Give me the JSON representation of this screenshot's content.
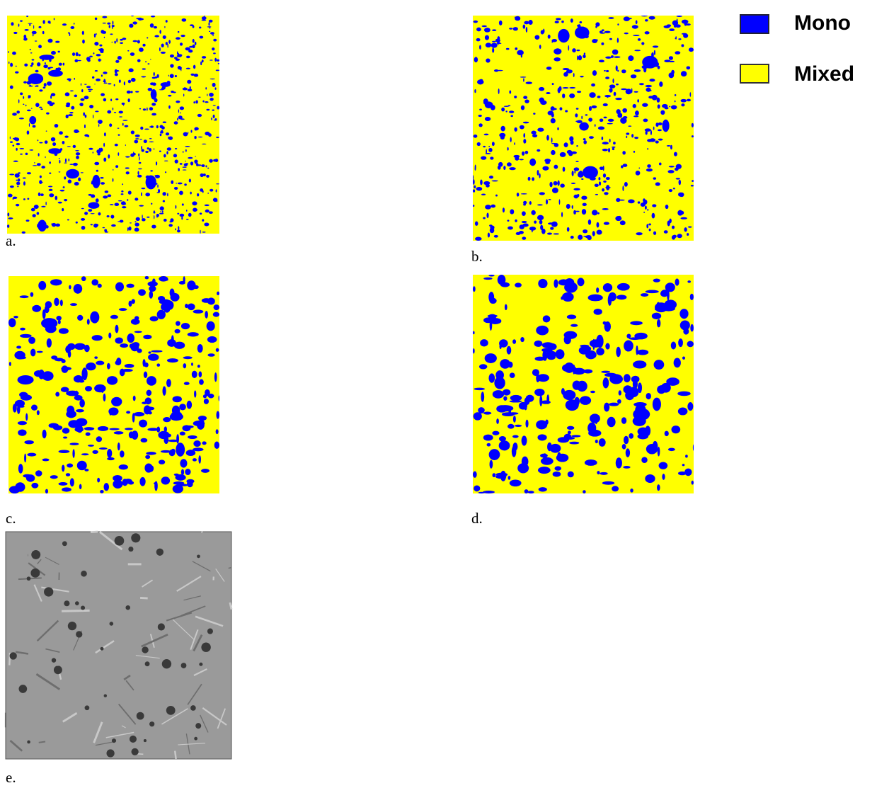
{
  "panels": [
    {
      "label": "a."
    },
    {
      "label": "b."
    },
    {
      "label": "c."
    },
    {
      "label": "d."
    },
    {
      "label": "e."
    }
  ],
  "legend": [
    {
      "label": "Mono",
      "color": "#0000ff"
    },
    {
      "label": "Mixed",
      "color": "#ffff00"
    }
  ]
}
